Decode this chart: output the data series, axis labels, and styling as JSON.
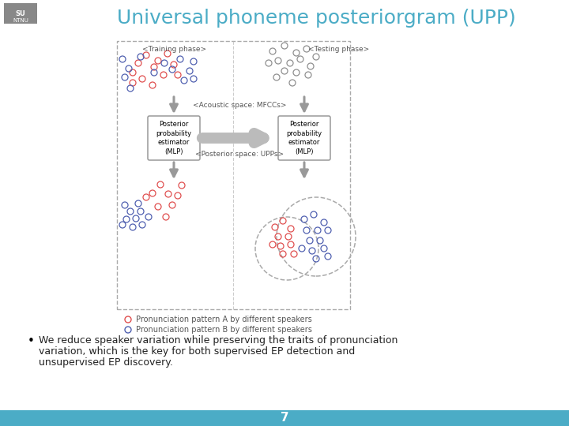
{
  "title": "Universal phoneme posteriorgram (UPP)",
  "title_color": "#4BACC6",
  "title_fontsize": 18,
  "bg_color": "#FFFFFF",
  "bottom_bar_color": "#4BACC6",
  "bottom_bar_text": "7",
  "bullet_text_line1": "We reduce speaker variation while preserving the traits of pronunciation",
  "bullet_text_line2": "variation, which is the key for both supervised EP detection and",
  "bullet_text_line3": "unsupervised EP discovery.",
  "training_label": "<Training phase>",
  "testing_label": "<Testing phase>",
  "acoustic_label": "<Acoustic space: MFCCs>",
  "posterior_label": "<Posterior space: UPPs>",
  "mlp_label": "Posterior\nprobability\nestimator\n(MLP)",
  "legend_A": "Pronunciation pattern A by different speakers",
  "legend_B": "Pronunciation pattern B by different speakers",
  "color_A": "#E05050",
  "color_B": "#5060B0",
  "color_gray": "#909090",
  "color_arrow": "#999999",
  "color_box_edge": "#999999",
  "color_dashed": "#AAAAAA"
}
